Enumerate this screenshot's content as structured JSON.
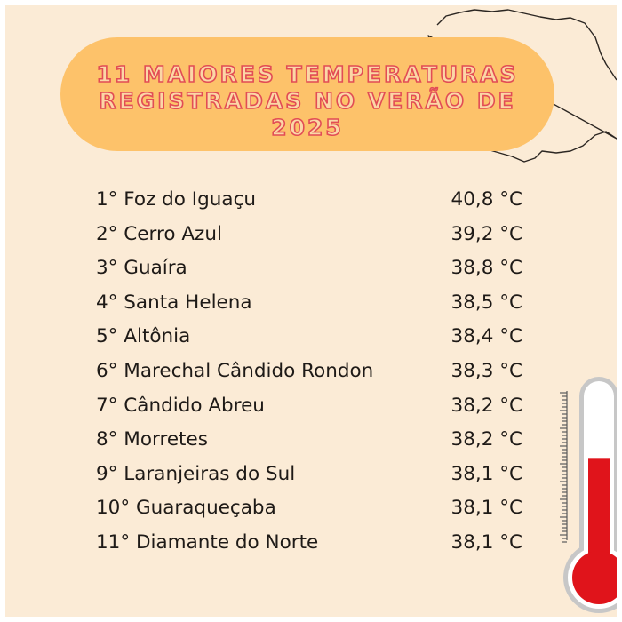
{
  "title": {
    "line1": "11 MAIORES TEMPERATURAS",
    "line2": "REGISTRADAS NO VERÃO DE 2025"
  },
  "ranking": [
    {
      "place": "1°",
      "city": "Foz do Iguaçu",
      "temperature": "40,8 °C"
    },
    {
      "place": "2°",
      "city": "Cerro Azul",
      "temperature": "39,2 °C"
    },
    {
      "place": "3°",
      "city": "Guaíra",
      "temperature": "38,8 °C"
    },
    {
      "place": "4°",
      "city": "Santa Helena",
      "temperature": "38,5 °C"
    },
    {
      "place": "5°",
      "city": "Altônia",
      "temperature": "38,4 °C"
    },
    {
      "place": "6°",
      "city": "Marechal Cândido Rondon",
      "temperature": "38,3 °C"
    },
    {
      "place": "7°",
      "city": "Cândido Abreu",
      "temperature": "38,2 °C"
    },
    {
      "place": "8°",
      "city": "Morretes",
      "temperature": "38,2 °C"
    },
    {
      "place": "9°",
      "city": "Laranjeiras do Sul",
      "temperature": "38,1 °C"
    },
    {
      "place": "10°",
      "city": "Guaraqueçaba",
      "temperature": "38,1 °C"
    },
    {
      "place": "11°",
      "city": "Diamante do Norte",
      "temperature": "38,1 °C"
    }
  ],
  "colors": {
    "background": "#fbebd6",
    "title_pill": "#fdc26a",
    "title_text": "#e24c55",
    "thermometer_fluid": "#e0141b"
  },
  "icons": {
    "map": "parana-map-outline",
    "thermometer": "thermometer-icon"
  },
  "thermometer_level": 0.62
}
